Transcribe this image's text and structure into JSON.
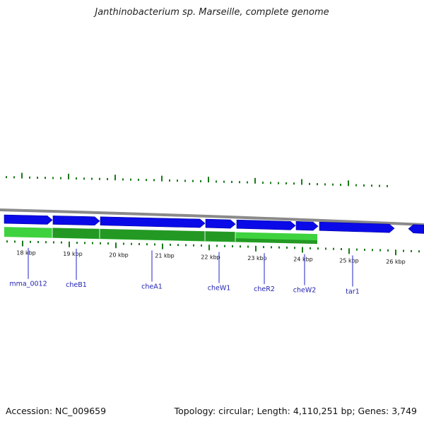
{
  "title": "Janthinobacterium sp. Marseille, complete genome",
  "footer": {
    "accession": "Accession: NC_009659",
    "summary": "Topology: circular; Length: 4,110,251 bp; Genes: 3,749"
  },
  "colors": {
    "background": "#ffffff",
    "backbone": "#8a8a8a",
    "gene_forward_fill": "#0a0ae8",
    "operon_light": "#3fd23f",
    "operon_dark": "#1e8f1e",
    "tick": "#1a7a1a",
    "label_line": "#2222cc",
    "gene_label": "#1f1fb0"
  },
  "scale": {
    "unit": "kbp",
    "labels": [
      "18 kbp",
      "19 kbp",
      "20 kbp",
      "21 kbp",
      "22 kbp",
      "23 kbp",
      "24 kbp",
      "25 kbp",
      "26 kbp"
    ]
  },
  "genes": [
    {
      "name": "mma_0012"
    },
    {
      "name": "cheB1"
    },
    {
      "name": "cheA1"
    },
    {
      "name": "cheW1"
    },
    {
      "name": "cheR2"
    },
    {
      "name": "cheW2"
    },
    {
      "name": "tar1"
    }
  ]
}
